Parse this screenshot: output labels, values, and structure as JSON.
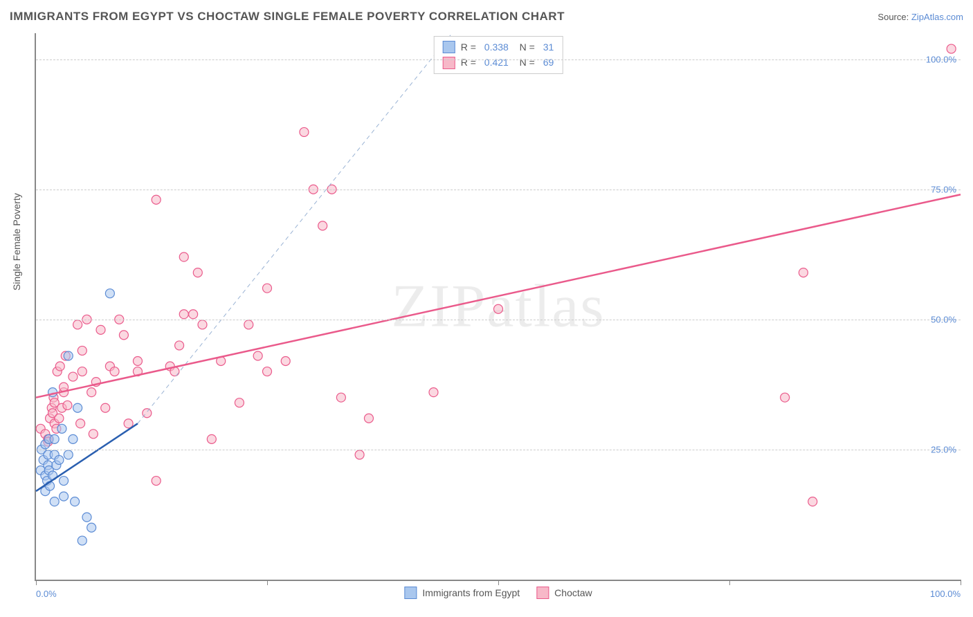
{
  "title": "IMMIGRANTS FROM EGYPT VS CHOCTAW SINGLE FEMALE POVERTY CORRELATION CHART",
  "source_label": "Source:",
  "source_name": "ZipAtlas.com",
  "ylabel": "Single Female Poverty",
  "watermark": "ZIPatlas",
  "chart": {
    "type": "scatter",
    "xlim": [
      0,
      100
    ],
    "ylim": [
      0,
      105
    ],
    "y_gridlines": [
      25,
      50,
      75,
      100
    ],
    "y_tick_labels": [
      "25.0%",
      "50.0%",
      "75.0%",
      "100.0%"
    ],
    "x_ticks": [
      0,
      25,
      50,
      75,
      100
    ],
    "x_tick_labels": {
      "0": "0.0%",
      "100": "100.0%"
    },
    "grid_color": "#cccccc",
    "axis_color": "#888888",
    "background_color": "#ffffff",
    "marker_radius": 6.5,
    "marker_stroke_width": 1.2,
    "line_width": 2.5,
    "font_size_title": 17,
    "font_size_label": 14,
    "font_size_tick": 13
  },
  "series": [
    {
      "name": "Immigrants from Egypt",
      "fill": "#a9c7ee",
      "fill_opacity": 0.55,
      "stroke": "#5b8bd4",
      "line_color": "#2a5fb0",
      "R": "0.338",
      "N": "31",
      "trend": {
        "x1": 0,
        "y1": 17,
        "x2": 11,
        "y2": 30
      },
      "trend_dash": {
        "x1": 11,
        "y1": 30,
        "x2": 45,
        "y2": 105
      },
      "points": [
        [
          0.5,
          21
        ],
        [
          0.6,
          25
        ],
        [
          0.8,
          23
        ],
        [
          1,
          20
        ],
        [
          1,
          17
        ],
        [
          1,
          26
        ],
        [
          1.2,
          19
        ],
        [
          1.3,
          22
        ],
        [
          1.3,
          24
        ],
        [
          1.4,
          21
        ],
        [
          1.4,
          27
        ],
        [
          1.5,
          18
        ],
        [
          1.8,
          20
        ],
        [
          1.8,
          36
        ],
        [
          2,
          15
        ],
        [
          2,
          24
        ],
        [
          2,
          27
        ],
        [
          2.2,
          22
        ],
        [
          2.5,
          23
        ],
        [
          2.8,
          29
        ],
        [
          3,
          19
        ],
        [
          3,
          16
        ],
        [
          3.5,
          43
        ],
        [
          3.5,
          24
        ],
        [
          4,
          27
        ],
        [
          4.2,
          15
        ],
        [
          4.5,
          33
        ],
        [
          5,
          7.5
        ],
        [
          5.5,
          12
        ],
        [
          6,
          10
        ],
        [
          8,
          55
        ]
      ]
    },
    {
      "name": "Choctaw",
      "fill": "#f7b8c8",
      "fill_opacity": 0.55,
      "stroke": "#ea5a8b",
      "line_color": "#ea5a8b",
      "R": "0.421",
      "N": "69",
      "trend": {
        "x1": 0,
        "y1": 35,
        "x2": 100,
        "y2": 74
      },
      "points": [
        [
          0.5,
          29
        ],
        [
          1,
          28
        ],
        [
          1.3,
          27
        ],
        [
          1.3,
          26.5
        ],
        [
          1.5,
          31
        ],
        [
          1.7,
          33
        ],
        [
          1.8,
          32
        ],
        [
          1.9,
          35
        ],
        [
          2,
          30
        ],
        [
          2,
          34
        ],
        [
          2.2,
          29
        ],
        [
          2.3,
          40
        ],
        [
          2.5,
          31
        ],
        [
          2.6,
          41
        ],
        [
          2.8,
          33
        ],
        [
          3,
          36
        ],
        [
          3,
          37
        ],
        [
          3.2,
          43
        ],
        [
          3.4,
          33.5
        ],
        [
          4,
          39
        ],
        [
          4.5,
          49
        ],
        [
          4.8,
          30
        ],
        [
          5,
          44
        ],
        [
          5,
          40
        ],
        [
          5.5,
          50
        ],
        [
          6,
          36
        ],
        [
          6.2,
          28
        ],
        [
          6.5,
          38
        ],
        [
          7,
          48
        ],
        [
          7.5,
          33
        ],
        [
          8,
          41
        ],
        [
          8.5,
          40
        ],
        [
          9,
          50
        ],
        [
          9.5,
          47
        ],
        [
          10,
          30
        ],
        [
          11,
          42
        ],
        [
          11,
          40
        ],
        [
          12,
          32
        ],
        [
          13,
          19
        ],
        [
          13,
          73
        ],
        [
          14.5,
          41
        ],
        [
          15,
          40
        ],
        [
          15.5,
          45
        ],
        [
          16,
          62
        ],
        [
          16,
          51
        ],
        [
          17,
          51
        ],
        [
          17.5,
          59
        ],
        [
          18,
          49
        ],
        [
          19,
          27
        ],
        [
          20,
          42
        ],
        [
          22,
          34
        ],
        [
          23,
          49
        ],
        [
          24,
          43
        ],
        [
          25,
          56
        ],
        [
          25,
          40
        ],
        [
          27,
          42
        ],
        [
          29,
          86
        ],
        [
          30,
          75
        ],
        [
          31,
          68
        ],
        [
          32,
          75
        ],
        [
          33,
          35
        ],
        [
          35,
          24
        ],
        [
          36,
          31
        ],
        [
          43,
          36
        ],
        [
          50,
          52
        ],
        [
          81,
          35
        ],
        [
          83,
          59
        ],
        [
          84,
          15
        ],
        [
          99,
          102
        ]
      ]
    }
  ],
  "legend_bottom": [
    {
      "label": "Immigrants from Egypt",
      "fill": "#a9c7ee",
      "stroke": "#5b8bd4"
    },
    {
      "label": "Choctaw",
      "fill": "#f7b8c8",
      "stroke": "#ea5a8b"
    }
  ]
}
